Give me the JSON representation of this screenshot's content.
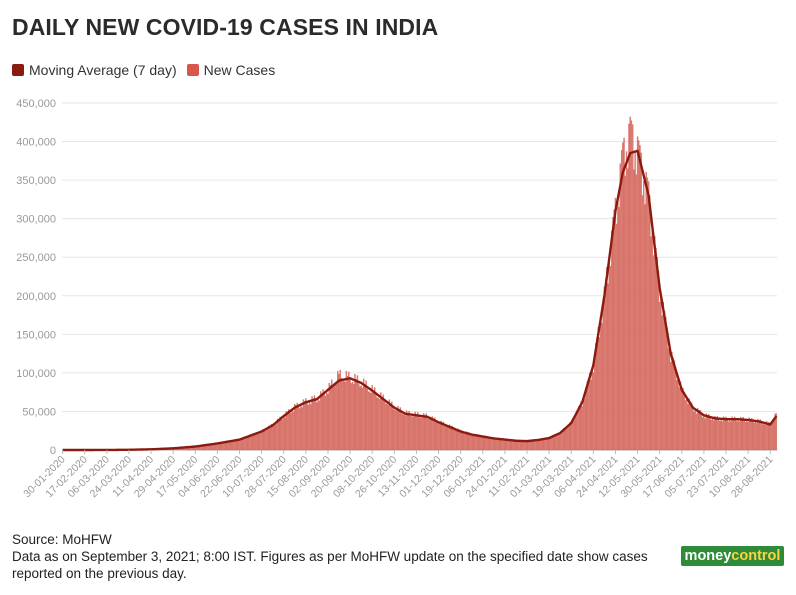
{
  "title": "DAILY NEW COVID-19 CASES IN INDIA",
  "legend": [
    {
      "label": "Moving Average (7 day)",
      "color": "#8b1a10"
    },
    {
      "label": "New Cases",
      "color": "#d9564a"
    }
  ],
  "source": "Source: MoHFW",
  "note": "Data as on September 3, 2021; 8:00 IST. Figures as per MoHFW update on the specified date show cases reported on the previous day.",
  "logo": {
    "part1": "money",
    "part2": "control"
  },
  "colors": {
    "bar": "#e0877e",
    "bar_edge": "#c94f45",
    "line": "#8b1a10",
    "grid": "#e6e6e6",
    "axis_text": "#999999"
  },
  "chart_data": {
    "type": "bar",
    "x_start": "30-01-2020",
    "x_tick_labels": [
      "30-01-2020",
      "17-02-2020",
      "06-03-2020",
      "24-03-2020",
      "11-04-2020",
      "29-04-2020",
      "17-05-2020",
      "04-06-2020",
      "22-06-2020",
      "10-07-2020",
      "28-07-2020",
      "15-08-2020",
      "02-09-2020",
      "20-09-2020",
      "08-10-2020",
      "26-10-2020",
      "13-11-2020",
      "01-12-2020",
      "19-12-2020",
      "06-01-2021",
      "24-01-2021",
      "11-02-2021",
      "01-03-2021",
      "19-03-2021",
      "06-04-2021",
      "24-04-2021",
      "12-05-2021",
      "30-05-2021",
      "17-06-2021",
      "05-07-2021",
      "23-07-2021",
      "10-08-2021",
      "28-08-2021"
    ],
    "y_ticks": [
      0,
      50000,
      100000,
      150000,
      200000,
      250000,
      300000,
      350000,
      400000,
      450000
    ],
    "y_tick_labels": [
      "0",
      "50,000",
      "100,000",
      "150,000",
      "200,000",
      "250,000",
      "300,000",
      "350,000",
      "400,000",
      "450,000"
    ],
    "ylim": [
      0,
      450000
    ],
    "series": [
      {
        "name": "Moving Average (7 day)",
        "kind": "line",
        "x": [
          "30-01-2020",
          "17-02-2020",
          "06-03-2020",
          "24-03-2020",
          "11-04-2020",
          "29-04-2020",
          "17-05-2020",
          "04-06-2020",
          "22-06-2020",
          "10-07-2020",
          "19-07-2020",
          "28-07-2020",
          "06-08-2020",
          "15-08-2020",
          "24-08-2020",
          "02-09-2020",
          "11-09-2020",
          "20-09-2020",
          "29-09-2020",
          "08-10-2020",
          "17-10-2020",
          "26-10-2020",
          "04-11-2020",
          "13-11-2020",
          "22-11-2020",
          "01-12-2020",
          "10-12-2020",
          "19-12-2020",
          "28-12-2020",
          "06-01-2021",
          "15-01-2021",
          "24-01-2021",
          "02-02-2021",
          "11-02-2021",
          "20-02-2021",
          "01-03-2021",
          "10-03-2021",
          "19-03-2021",
          "28-03-2021",
          "06-04-2021",
          "15-04-2021",
          "24-04-2021",
          "30-04-2021",
          "06-05-2021",
          "12-05-2021",
          "21-05-2021",
          "30-05-2021",
          "08-06-2021",
          "17-06-2021",
          "26-06-2021",
          "05-07-2021",
          "14-07-2021",
          "23-07-2021",
          "01-08-2021",
          "10-08-2021",
          "19-08-2021",
          "28-08-2021",
          "02-09-2021"
        ],
        "values": [
          0,
          0,
          50,
          300,
          900,
          2200,
          4500,
          8500,
          13500,
          24000,
          32000,
          44000,
          55000,
          62000,
          66000,
          78000,
          90000,
          93000,
          87000,
          77000,
          66000,
          55000,
          47000,
          45000,
          43000,
          36000,
          30000,
          24000,
          20000,
          17500,
          15000,
          13500,
          12000,
          11500,
          13000,
          15500,
          22000,
          35000,
          62000,
          110000,
          200000,
          310000,
          360000,
          385000,
          388000,
          330000,
          210000,
          125000,
          78000,
          55000,
          45000,
          41000,
          40000,
          40000,
          39000,
          37000,
          33000,
          44000
        ]
      },
      {
        "name": "New Cases",
        "kind": "bar",
        "x": [
          "30-01-2020",
          "17-02-2020",
          "06-03-2020",
          "24-03-2020",
          "11-04-2020",
          "29-04-2020",
          "17-05-2020",
          "04-06-2020",
          "22-06-2020",
          "10-07-2020",
          "19-07-2020",
          "28-07-2020",
          "06-08-2020",
          "15-08-2020",
          "24-08-2020",
          "02-09-2020",
          "11-09-2020",
          "20-09-2020",
          "29-09-2020",
          "08-10-2020",
          "17-10-2020",
          "26-10-2020",
          "04-11-2020",
          "13-11-2020",
          "22-11-2020",
          "01-12-2020",
          "10-12-2020",
          "19-12-2020",
          "28-12-2020",
          "06-01-2021",
          "15-01-2021",
          "24-01-2021",
          "02-02-2021",
          "11-02-2021",
          "20-02-2021",
          "01-03-2021",
          "10-03-2021",
          "19-03-2021",
          "28-03-2021",
          "06-04-2021",
          "15-04-2021",
          "24-04-2021",
          "30-04-2021",
          "06-05-2021",
          "12-05-2021",
          "21-05-2021",
          "30-05-2021",
          "08-06-2021",
          "17-06-2021",
          "26-06-2021",
          "05-07-2021",
          "14-07-2021",
          "23-07-2021",
          "01-08-2021",
          "10-08-2021",
          "19-08-2021",
          "28-08-2021",
          "02-09-2021"
        ],
        "values": [
          0,
          0,
          50,
          300,
          900,
          2200,
          4500,
          8500,
          13500,
          24000,
          32000,
          44000,
          55000,
          62000,
          66000,
          78000,
          96000,
          93000,
          87000,
          77000,
          66000,
          55000,
          47000,
          45000,
          43000,
          36000,
          30000,
          24000,
          20000,
          17500,
          15000,
          13500,
          12000,
          11500,
          13000,
          15500,
          22000,
          35000,
          62000,
          110000,
          200000,
          310000,
          380000,
          410000,
          388000,
          330000,
          210000,
          125000,
          78000,
          55000,
          45000,
          41000,
          40000,
          40000,
          39000,
          37000,
          33000,
          46000
        ]
      }
    ]
  }
}
